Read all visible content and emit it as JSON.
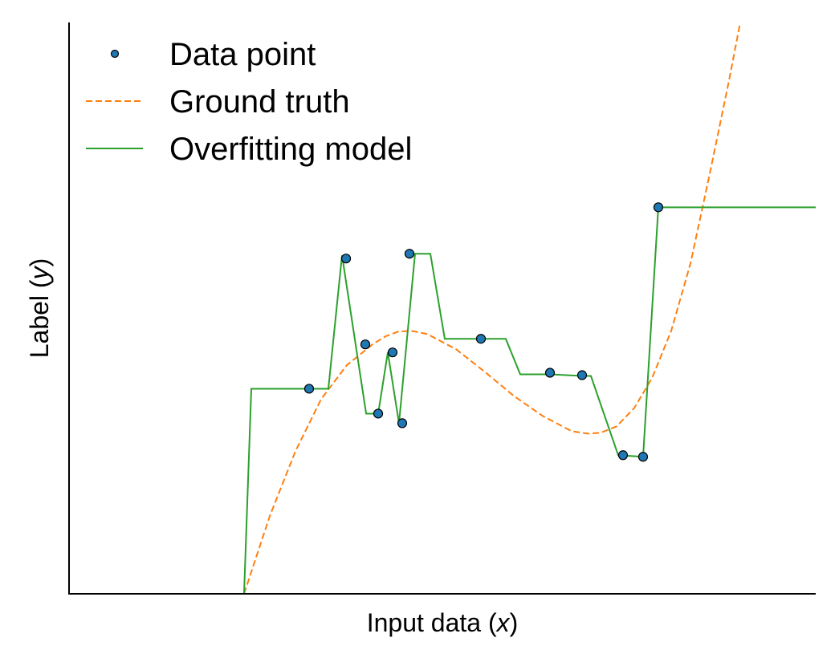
{
  "chart_data": {
    "type": "line",
    "title": "",
    "xlabel": "Input data (x)",
    "xlabel_parts": {
      "prefix": "Input data (",
      "var": "x",
      "suffix": ")"
    },
    "ylabel": "Label (y)",
    "ylabel_parts": {
      "prefix": "Label (",
      "var": "y",
      "suffix": ")"
    },
    "xlim": [
      0,
      1
    ],
    "ylim": [
      0,
      1
    ],
    "ticks_visible": false,
    "grid": false,
    "legend_position": "top-left",
    "colors": {
      "data_point": "#1f77b4",
      "ground_truth": "#ff7f0e",
      "overfitting_model": "#2ca02c"
    },
    "series": [
      {
        "name": "Data point",
        "kind": "scatter",
        "points": [
          [
            0.3215,
            0.3589
          ],
          [
            0.371,
            0.5868
          ],
          [
            0.3968,
            0.4365
          ],
          [
            0.414,
            0.3154
          ],
          [
            0.4333,
            0.4225
          ],
          [
            0.4462,
            0.2986
          ],
          [
            0.4559,
            0.5952
          ],
          [
            0.5516,
            0.4463
          ],
          [
            0.6441,
            0.3869
          ],
          [
            0.6871,
            0.3827
          ],
          [
            0.7419,
            0.2426
          ],
          [
            0.7688,
            0.2398
          ],
          [
            0.7892,
            0.6765
          ]
        ]
      },
      {
        "name": "Ground truth",
        "kind": "line",
        "style": "dashed",
        "points": [
          [
            0.2344,
            0.0
          ],
          [
            0.2688,
            0.136
          ],
          [
            0.3032,
            0.2495
          ],
          [
            0.3376,
            0.3406
          ],
          [
            0.372,
            0.4001
          ],
          [
            0.4064,
            0.4365
          ],
          [
            0.4236,
            0.4505
          ],
          [
            0.4409,
            0.4589
          ],
          [
            0.4581,
            0.4603
          ],
          [
            0.4796,
            0.4547
          ],
          [
            0.5183,
            0.4281
          ],
          [
            0.557,
            0.3883
          ],
          [
            0.5957,
            0.3463
          ],
          [
            0.6344,
            0.3112
          ],
          [
            0.6731,
            0.2846
          ],
          [
            0.6946,
            0.2804
          ],
          [
            0.7118,
            0.2818
          ],
          [
            0.7333,
            0.293
          ],
          [
            0.757,
            0.3252
          ],
          [
            0.7806,
            0.3771
          ],
          [
            0.8065,
            0.4603
          ],
          [
            0.8323,
            0.5784
          ],
          [
            0.8581,
            0.7355
          ],
          [
            0.8839,
            0.8985
          ],
          [
            0.8989,
            1.0
          ]
        ]
      },
      {
        "name": "Overfitting model",
        "kind": "line",
        "style": "solid",
        "points": [
          [
            0.2344,
            0.0
          ],
          [
            0.2441,
            0.3589
          ],
          [
            0.3215,
            0.3589
          ],
          [
            0.3473,
            0.3589
          ],
          [
            0.3656,
            0.5924
          ],
          [
            0.3979,
            0.3154
          ],
          [
            0.414,
            0.3154
          ],
          [
            0.4269,
            0.4225
          ],
          [
            0.4419,
            0.2986
          ],
          [
            0.4634,
            0.5952
          ],
          [
            0.4839,
            0.5952
          ],
          [
            0.5032,
            0.4463
          ],
          [
            0.5516,
            0.4463
          ],
          [
            0.5849,
            0.4463
          ],
          [
            0.6043,
            0.3841
          ],
          [
            0.6441,
            0.3841
          ],
          [
            0.6871,
            0.3813
          ],
          [
            0.6989,
            0.3813
          ],
          [
            0.7355,
            0.2426
          ],
          [
            0.7688,
            0.2398
          ],
          [
            0.7892,
            0.6765
          ],
          [
            1.0,
            0.6765
          ]
        ]
      }
    ]
  }
}
